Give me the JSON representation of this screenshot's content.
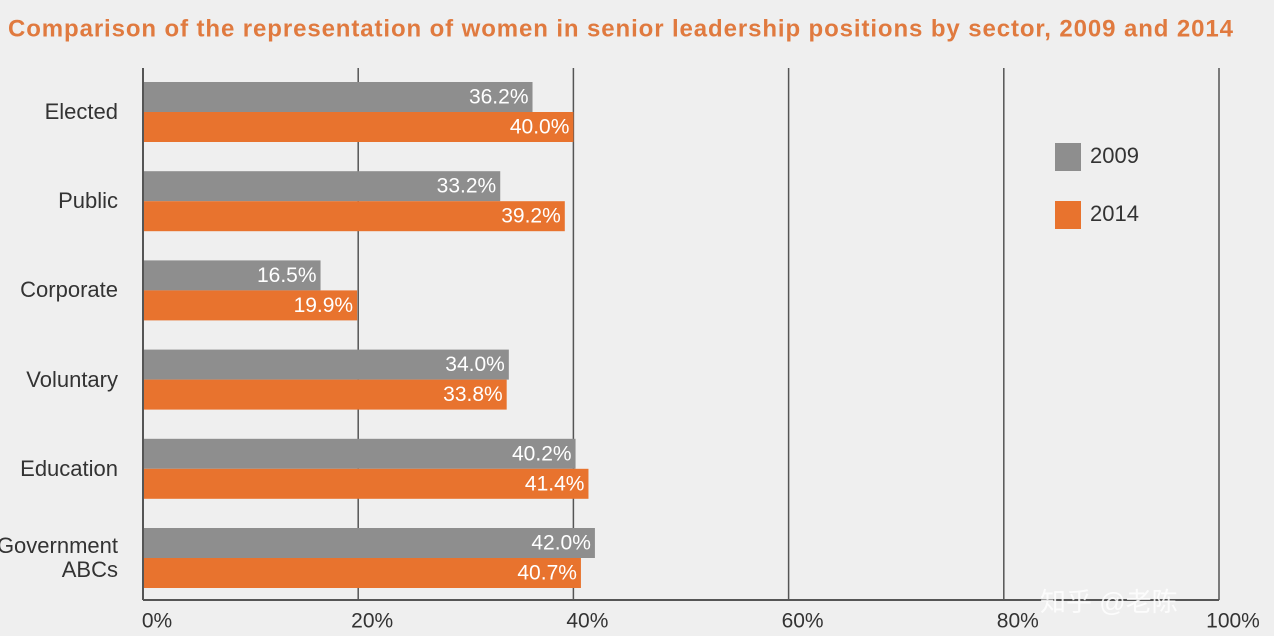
{
  "chart_data": {
    "type": "hbar",
    "title": "Comparison of the representation of women in senior leadership positions by sector, 2009 and 2014",
    "categories": [
      "Elected",
      "Public",
      "Corporate",
      "Voluntary",
      "Education",
      "Government ABCs"
    ],
    "series": [
      {
        "name": "2009",
        "color": "#8e8e8e",
        "values": [
          36.2,
          33.2,
          16.5,
          34.0,
          40.2,
          42.0
        ],
        "value_labels": [
          "36.2%",
          "33.2%",
          "16.5%",
          "34.0%",
          "40.2%",
          "42.0%"
        ]
      },
      {
        "name": "2014",
        "color": "#e8732e",
        "values": [
          40.0,
          39.2,
          19.9,
          33.8,
          41.4,
          40.7
        ],
        "value_labels": [
          "40.0%",
          "39.2%",
          "19.9%",
          "33.8%",
          "41.4%",
          "40.7%"
        ]
      }
    ],
    "xlim": [
      0,
      100
    ],
    "xticks": [
      {
        "value": 0,
        "label": "0%"
      },
      {
        "value": 20,
        "label": "20%"
      },
      {
        "value": 40,
        "label": "40%"
      },
      {
        "value": 60,
        "label": "60%"
      },
      {
        "value": 80,
        "label": "80%"
      },
      {
        "value": 100,
        "label": "100%"
      }
    ],
    "grid": true,
    "legend": "right",
    "watermark": "知乎 @老陈"
  }
}
